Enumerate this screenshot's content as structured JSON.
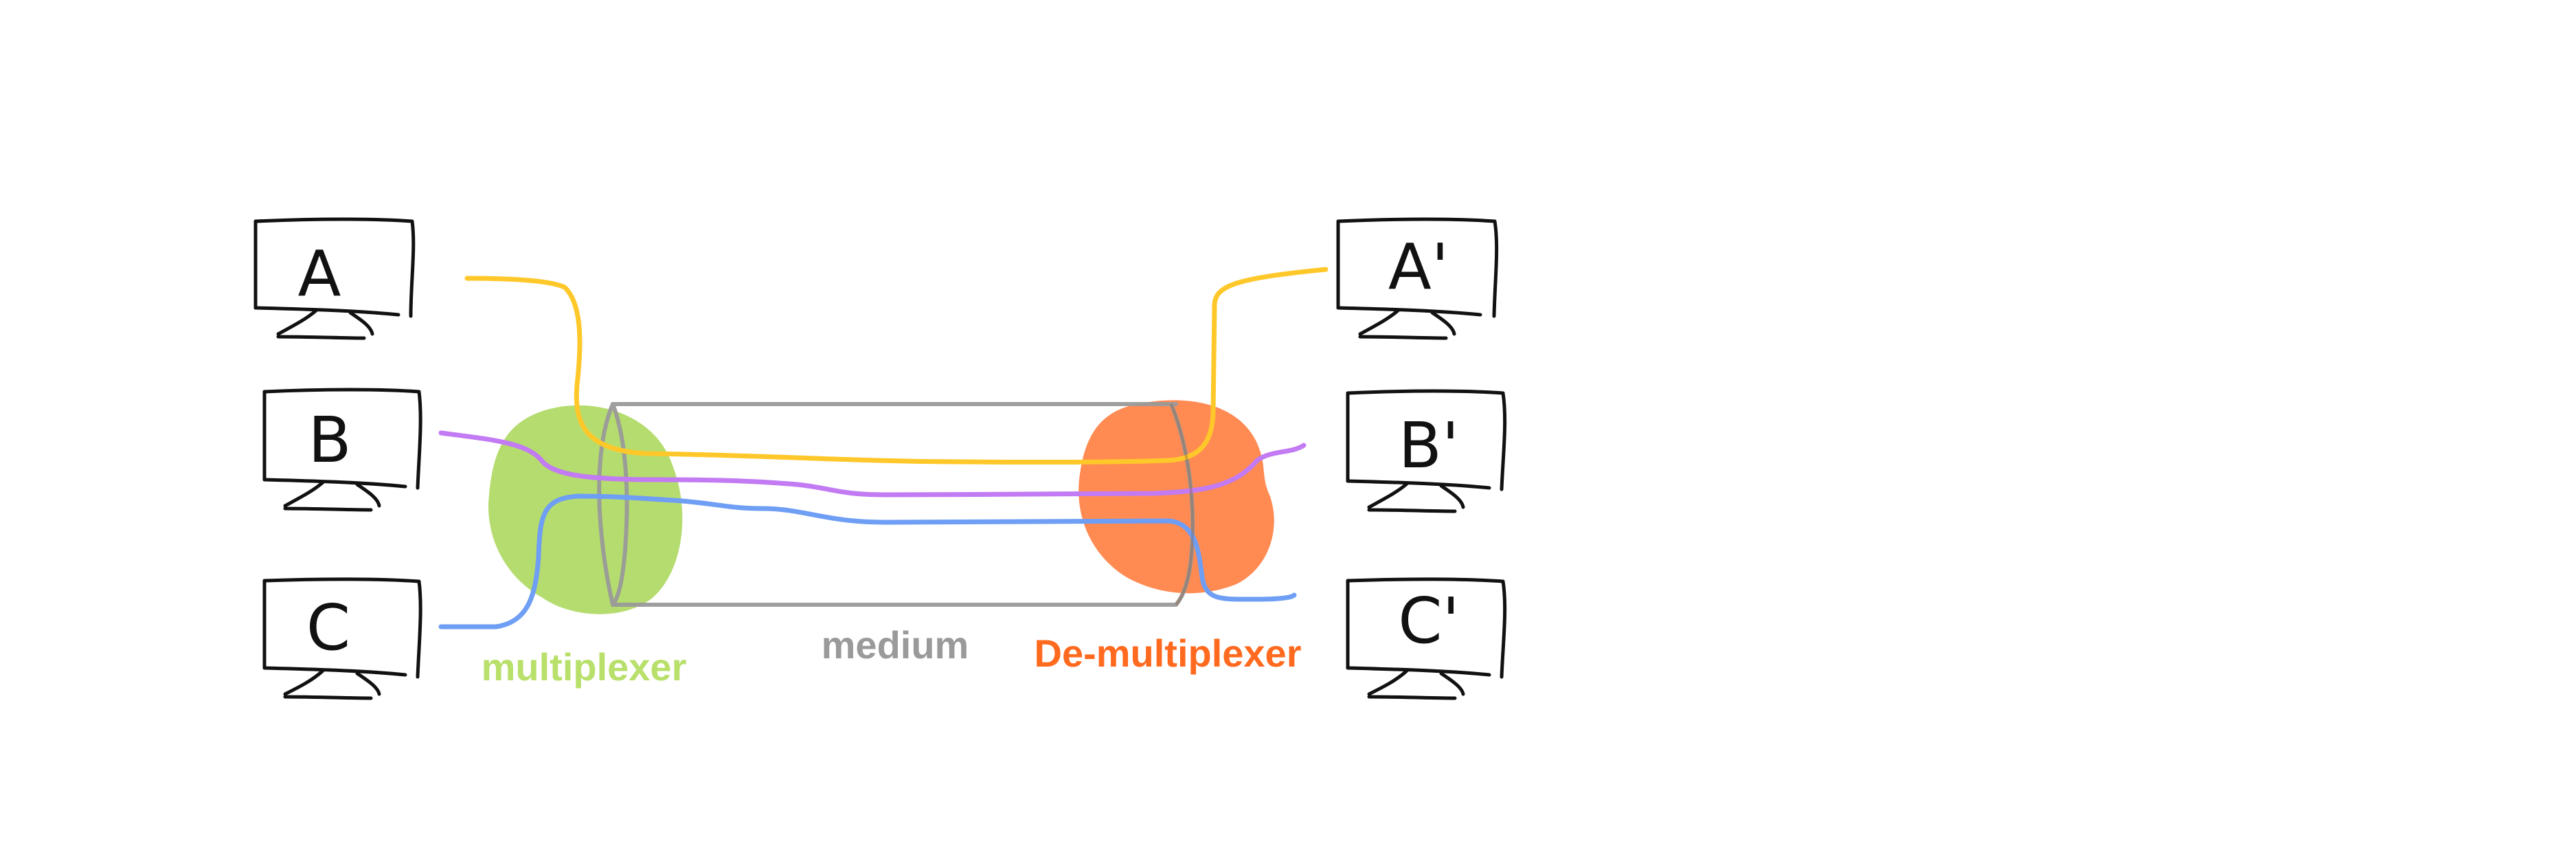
{
  "colors": {
    "ink": "#111111",
    "medium": "#9a9a9a",
    "multiplexer": "#b5dc6f",
    "demultiplexer": "#ff8a52",
    "multiplexer_label": "#b8e06a",
    "demultiplexer_label": "#ff6a1f",
    "line_a": "#ffc82a",
    "line_b": "#c27bf2",
    "line_c": "#6f9ef5"
  },
  "sources": {
    "a": "A",
    "b": "B",
    "c": "C"
  },
  "destinations": {
    "a": "A'",
    "b": "B'",
    "c": "C'"
  },
  "labels": {
    "multiplexer": "multiplexer",
    "medium": "medium",
    "demultiplexer": "De-multiplexer"
  }
}
